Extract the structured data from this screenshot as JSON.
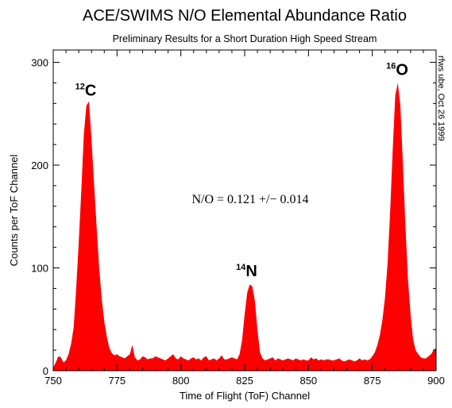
{
  "chart_data": {
    "type": "area",
    "title": "ACE/SWIMS N/O Elemental Abundance Ratio",
    "subtitle": "Preliminary Results for a Short Duration High Speed Stream",
    "xlabel": "Time of Flight (ToF) Channel",
    "ylabel": "Counts per ToF Channel",
    "xlim": [
      750,
      900
    ],
    "ylim": [
      0,
      312
    ],
    "x_ticks": [
      "750",
      "775",
      "800",
      "825",
      "850",
      "875",
      "900"
    ],
    "y_ticks": [
      "0",
      "100",
      "200",
      "300"
    ],
    "grid": false,
    "fill_color": "#ff0000",
    "side_note": "rfws ube, Oct 26 1999",
    "annotation": "N/O = 0.121 +/− 0.014",
    "peaks": [
      {
        "mass": "12",
        "element": "C",
        "x": 764,
        "y": 260
      },
      {
        "mass": "14",
        "element": "N",
        "x": 827,
        "y": 84
      },
      {
        "mass": "16",
        "element": "O",
        "x": 886,
        "y": 280
      }
    ],
    "series": [
      {
        "x": [
          750,
          751,
          752,
          753,
          754,
          755,
          756,
          757,
          758,
          759,
          760,
          761,
          762,
          763,
          764,
          765,
          766,
          767,
          768,
          769,
          770,
          771,
          772,
          773,
          774,
          775,
          776,
          777,
          778,
          779,
          780,
          781,
          782,
          783,
          784,
          785,
          786,
          787,
          788,
          789,
          790,
          791,
          792,
          793,
          794,
          795,
          796,
          797,
          798,
          799,
          800,
          801,
          802,
          803,
          804,
          805,
          806,
          807,
          808,
          809,
          810,
          811,
          812,
          813,
          814,
          815,
          816,
          817,
          818,
          819,
          820,
          821,
          822,
          823,
          824,
          825,
          826,
          827,
          828,
          829,
          830,
          831,
          832,
          833,
          834,
          835,
          836,
          837,
          838,
          839,
          840,
          841,
          842,
          843,
          844,
          845,
          846,
          847,
          848,
          849,
          850,
          851,
          852,
          853,
          854,
          855,
          856,
          857,
          858,
          859,
          860,
          861,
          862,
          863,
          864,
          865,
          866,
          867,
          868,
          869,
          870,
          871,
          872,
          873,
          874,
          875,
          876,
          877,
          878,
          879,
          880,
          881,
          882,
          883,
          884,
          885,
          886,
          887,
          888,
          889,
          890,
          891,
          892,
          893,
          894,
          895,
          896,
          897,
          898,
          899,
          900
        ],
        "values": [
          3,
          8,
          14,
          13,
          8,
          10,
          16,
          26,
          42,
          80,
          125,
          175,
          230,
          258,
          262,
          225,
          182,
          140,
          100,
          70,
          48,
          33,
          22,
          17,
          15,
          16,
          14,
          13,
          12,
          14,
          16,
          25,
          13,
          10,
          11,
          14,
          13,
          11,
          12,
          12,
          14,
          13,
          12,
          11,
          10,
          12,
          14,
          16,
          12,
          11,
          14,
          12,
          11,
          10,
          12,
          13,
          11,
          12,
          10,
          13,
          14,
          10,
          11,
          12,
          10,
          12,
          15,
          11,
          11,
          12,
          13,
          12,
          11,
          16,
          30,
          55,
          76,
          84,
          82,
          68,
          40,
          18,
          12,
          10,
          11,
          12,
          13,
          10,
          12,
          11,
          10,
          11,
          12,
          11,
          10,
          12,
          11,
          10,
          11,
          10,
          10,
          13,
          11,
          12,
          10,
          11,
          10,
          11,
          11,
          10,
          10,
          11,
          12,
          10,
          9,
          10,
          11,
          10,
          9,
          10,
          12,
          10,
          11,
          10,
          11,
          14,
          18,
          25,
          35,
          50,
          72,
          105,
          155,
          215,
          268,
          280,
          258,
          200,
          140,
          88,
          55,
          30,
          20,
          16,
          13,
          12,
          12,
          14,
          16,
          20,
          22
        ]
      }
    ]
  }
}
